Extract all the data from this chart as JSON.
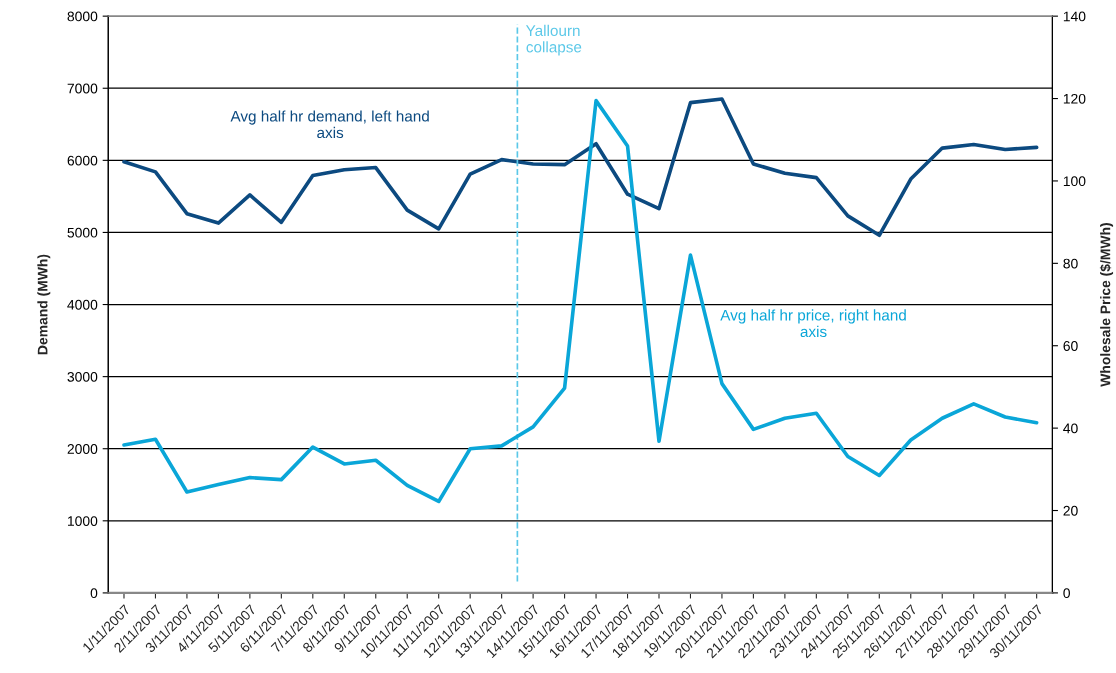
{
  "chart_data": {
    "type": "line",
    "ylabel": "Demand (MWh)",
    "y2label": "Wholesale Price ($/MWh)",
    "x": [
      "2007-11-01",
      "2007-11-02",
      "2007-11-03",
      "2007-11-04",
      "2007-11-05",
      "2007-11-06",
      "2007-11-07",
      "2007-11-08",
      "2007-11-09",
      "2007-11-10",
      "2007-11-11",
      "2007-11-12",
      "2007-11-13",
      "2007-11-14",
      "2007-11-15",
      "2007-11-16",
      "2007-11-17",
      "2007-11-18",
      "2007-11-19",
      "2007-11-20",
      "2007-11-21",
      "2007-11-22",
      "2007-11-23",
      "2007-11-24",
      "2007-11-25",
      "2007-11-26",
      "2007-11-27",
      "2007-11-28",
      "2007-11-29",
      "2007-11-30"
    ],
    "xlim": [
      "2007-10-31T12:00",
      "2007-11-30T12:00"
    ],
    "xticks": [
      {
        "value": "2007-11-01",
        "label": "1/11/2007"
      },
      {
        "value": "2007-11-02",
        "label": "2/11/2007"
      },
      {
        "value": "2007-11-03",
        "label": "3/11/2007"
      },
      {
        "value": "2007-11-04",
        "label": "4/11/2007"
      },
      {
        "value": "2007-11-05",
        "label": "5/11/2007"
      },
      {
        "value": "2007-11-06",
        "label": "6/11/2007"
      },
      {
        "value": "2007-11-07",
        "label": "7/11/2007"
      },
      {
        "value": "2007-11-08",
        "label": "8/11/2007"
      },
      {
        "value": "2007-11-09",
        "label": "9/11/2007"
      },
      {
        "value": "2007-11-10",
        "label": "10/11/2007"
      },
      {
        "value": "2007-11-11",
        "label": "11/11/2007"
      },
      {
        "value": "2007-11-12",
        "label": "12/11/2007"
      },
      {
        "value": "2007-11-13",
        "label": "13/11/2007"
      },
      {
        "value": "2007-11-14",
        "label": "14/11/2007"
      },
      {
        "value": "2007-11-15",
        "label": "15/11/2007"
      },
      {
        "value": "2007-11-16",
        "label": "16/11/2007"
      },
      {
        "value": "2007-11-17",
        "label": "17/11/2007"
      },
      {
        "value": "2007-11-18",
        "label": "18/11/2007"
      },
      {
        "value": "2007-11-19",
        "label": "19/11/2007"
      },
      {
        "value": "2007-11-20",
        "label": "20/11/2007"
      },
      {
        "value": "2007-11-21",
        "label": "21/11/2007"
      },
      {
        "value": "2007-11-22",
        "label": "22/11/2007"
      },
      {
        "value": "2007-11-23",
        "label": "23/11/2007"
      },
      {
        "value": "2007-11-24",
        "label": "24/11/2007"
      },
      {
        "value": "2007-11-25",
        "label": "25/11/2007"
      },
      {
        "value": "2007-11-26",
        "label": "26/11/2007"
      },
      {
        "value": "2007-11-27",
        "label": "27/11/2007"
      },
      {
        "value": "2007-11-28",
        "label": "28/11/2007"
      },
      {
        "value": "2007-11-29",
        "label": "29/11/2007"
      },
      {
        "value": "2007-11-30",
        "label": "30/11/2007"
      }
    ],
    "ylim": [
      0,
      8000
    ],
    "yticks": [
      0,
      1000,
      2000,
      3000,
      4000,
      5000,
      6000,
      7000,
      8000
    ],
    "y2lim": [
      0,
      140
    ],
    "y2ticks": [
      0,
      20,
      40,
      60,
      80,
      100,
      120,
      140
    ],
    "grid": "y",
    "legend": false,
    "marker": "none",
    "line_style": "solid",
    "series": [
      {
        "name": "Avg half hr demand, left hand\naxis",
        "color": "#0c4a80",
        "values": [
          5980,
          5840,
          5260,
          5130,
          5520,
          5140,
          5790,
          5870,
          5900,
          5310,
          5050,
          5810,
          6010,
          5950,
          5940,
          6230,
          5530,
          5330,
          6800,
          6850,
          5950,
          5820,
          5760,
          5230,
          4960,
          5740,
          6170,
          6220,
          6150,
          6180
        ]
      },
      {
        "name": "Avg half hr price, right hand\naxis",
        "color": "#0aa6d8",
        "axis": "y2",
        "values": [
          35.9,
          37.3,
          24.5,
          26.3,
          28.0,
          27.5,
          35.4,
          31.3,
          32.2,
          26.1,
          22.2,
          35.0,
          35.7,
          40.3,
          49.7,
          119.5,
          108.5,
          36.8,
          82.0,
          50.8,
          39.7,
          42.4,
          43.6,
          33.1,
          28.5,
          37.1,
          42.4,
          45.9,
          42.7,
          41.3
        ]
      }
    ],
    "ref_lines": [
      {
        "axis": "x",
        "value": "2007-11-13T12:00",
        "label": "Yallourn\ncollapse",
        "color": "#5bc8e8",
        "line_style": "dashed"
      }
    ]
  }
}
